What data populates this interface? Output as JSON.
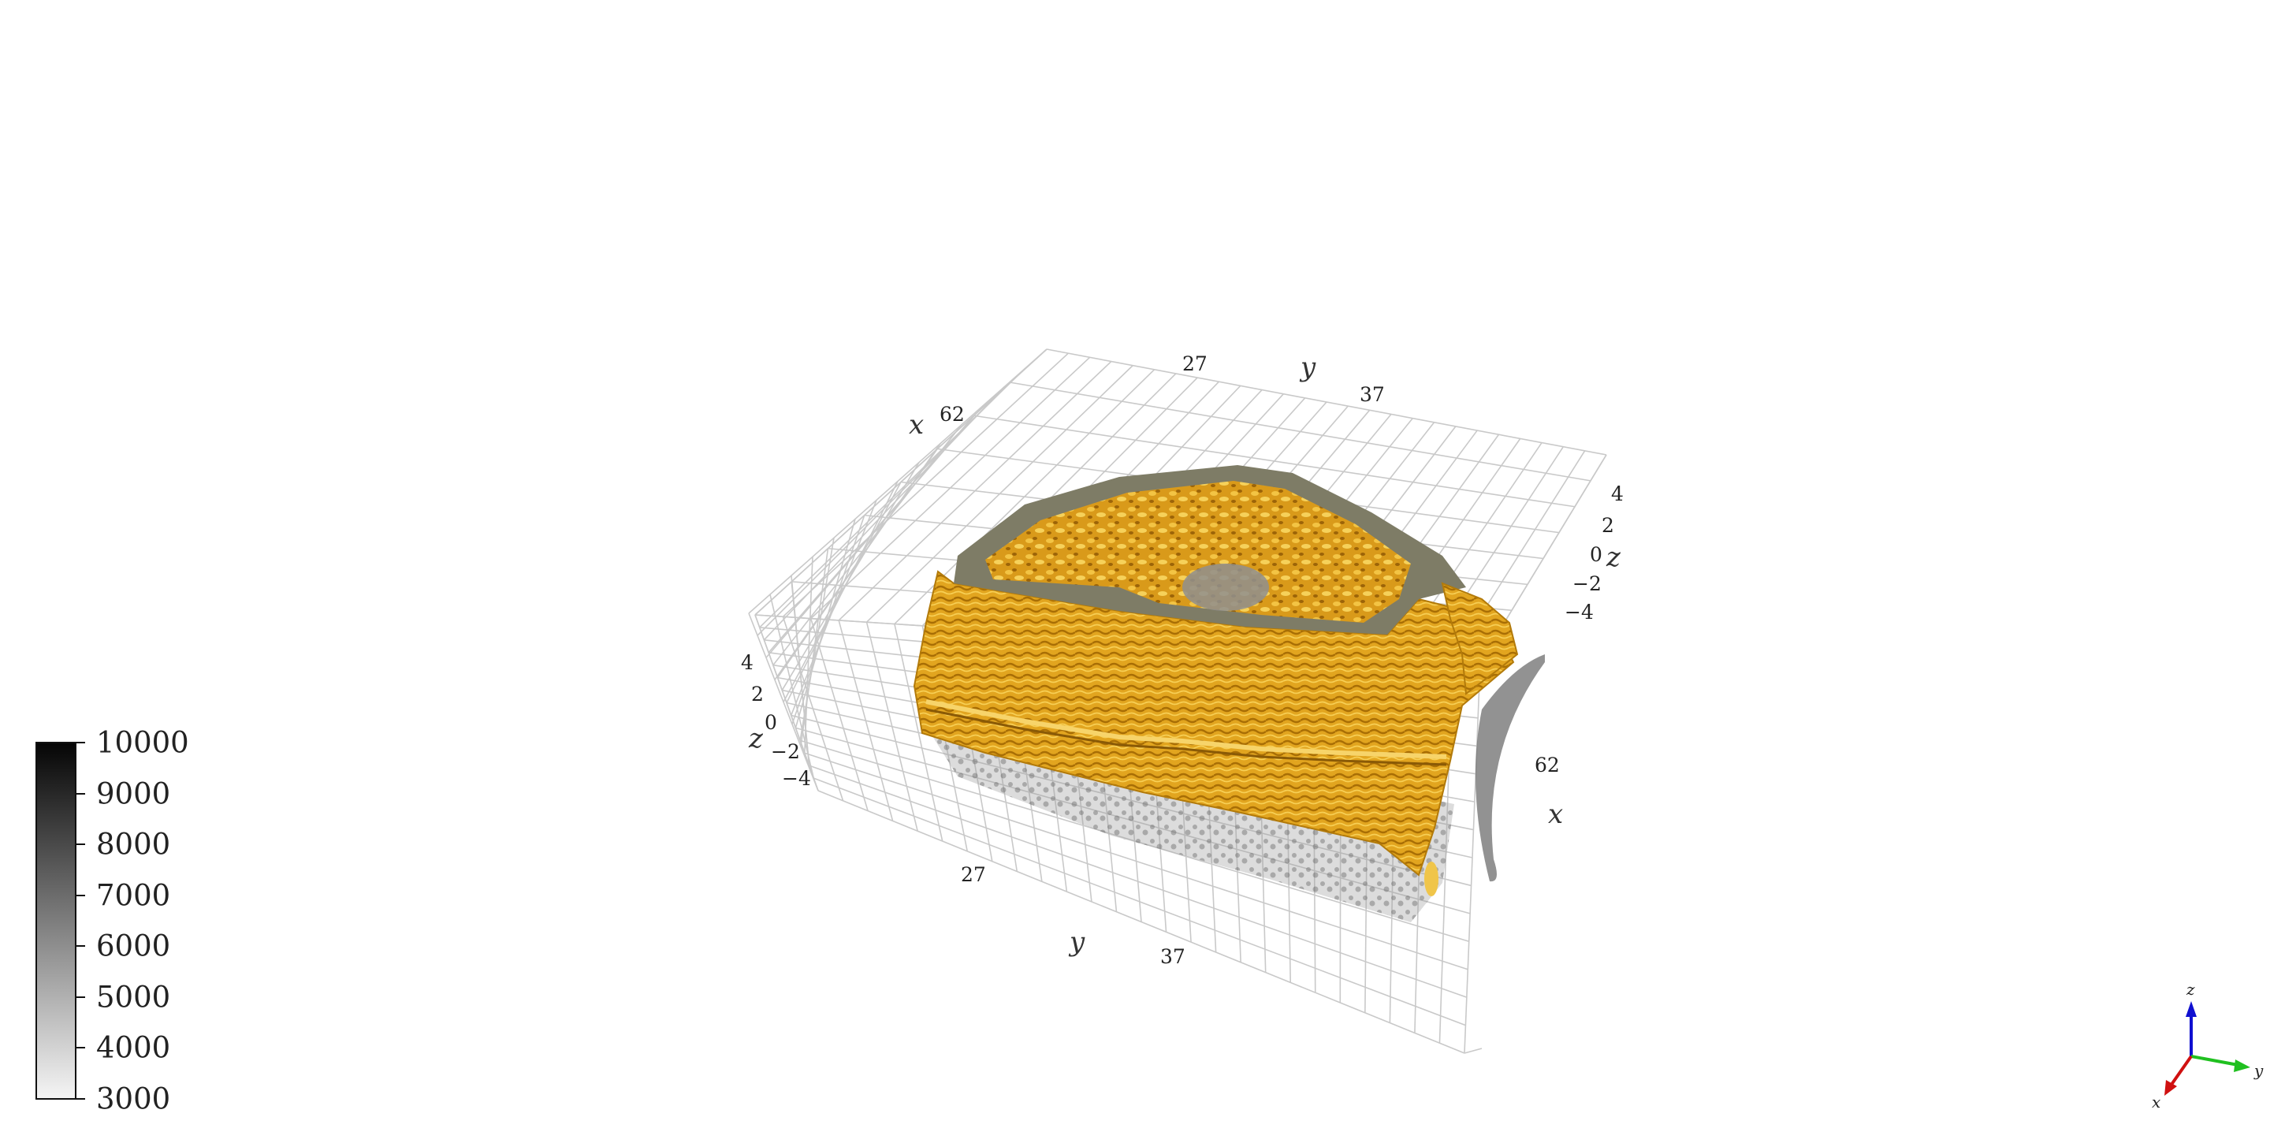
{
  "scene": {
    "top_y_axis": {
      "label": "y",
      "ticks": [
        "27",
        "37"
      ]
    },
    "top_x_axis": {
      "label": "x",
      "ticks": [
        "62"
      ]
    },
    "right_z_axis": {
      "label": "z",
      "ticks": [
        "4",
        "2",
        "0",
        "−2",
        "−4"
      ]
    },
    "left_z_axis": {
      "label": "z",
      "ticks": [
        "4",
        "2",
        "0",
        "−2",
        "−4"
      ]
    },
    "bottom_y_axis": {
      "label": "y",
      "ticks": [
        "27",
        "37"
      ]
    },
    "right_x_axis": {
      "label": "x",
      "ticks": [
        "62"
      ]
    },
    "surface_color": "#e6a820",
    "cap_color": "#7e7c66",
    "volume_color": "#707070"
  },
  "colorbar": {
    "min": 3000,
    "max": 10000,
    "ticks": [
      "10000",
      "9000",
      "8000",
      "7000",
      "6000",
      "5000",
      "4000",
      "3000"
    ],
    "gradient_from": "#f5f5f5",
    "gradient_to": "#050505"
  },
  "orientation_triad": {
    "z": "z",
    "y": "y",
    "x": "x",
    "z_color": "#1010d0",
    "y_color": "#20c020",
    "x_color": "#d01010"
  }
}
